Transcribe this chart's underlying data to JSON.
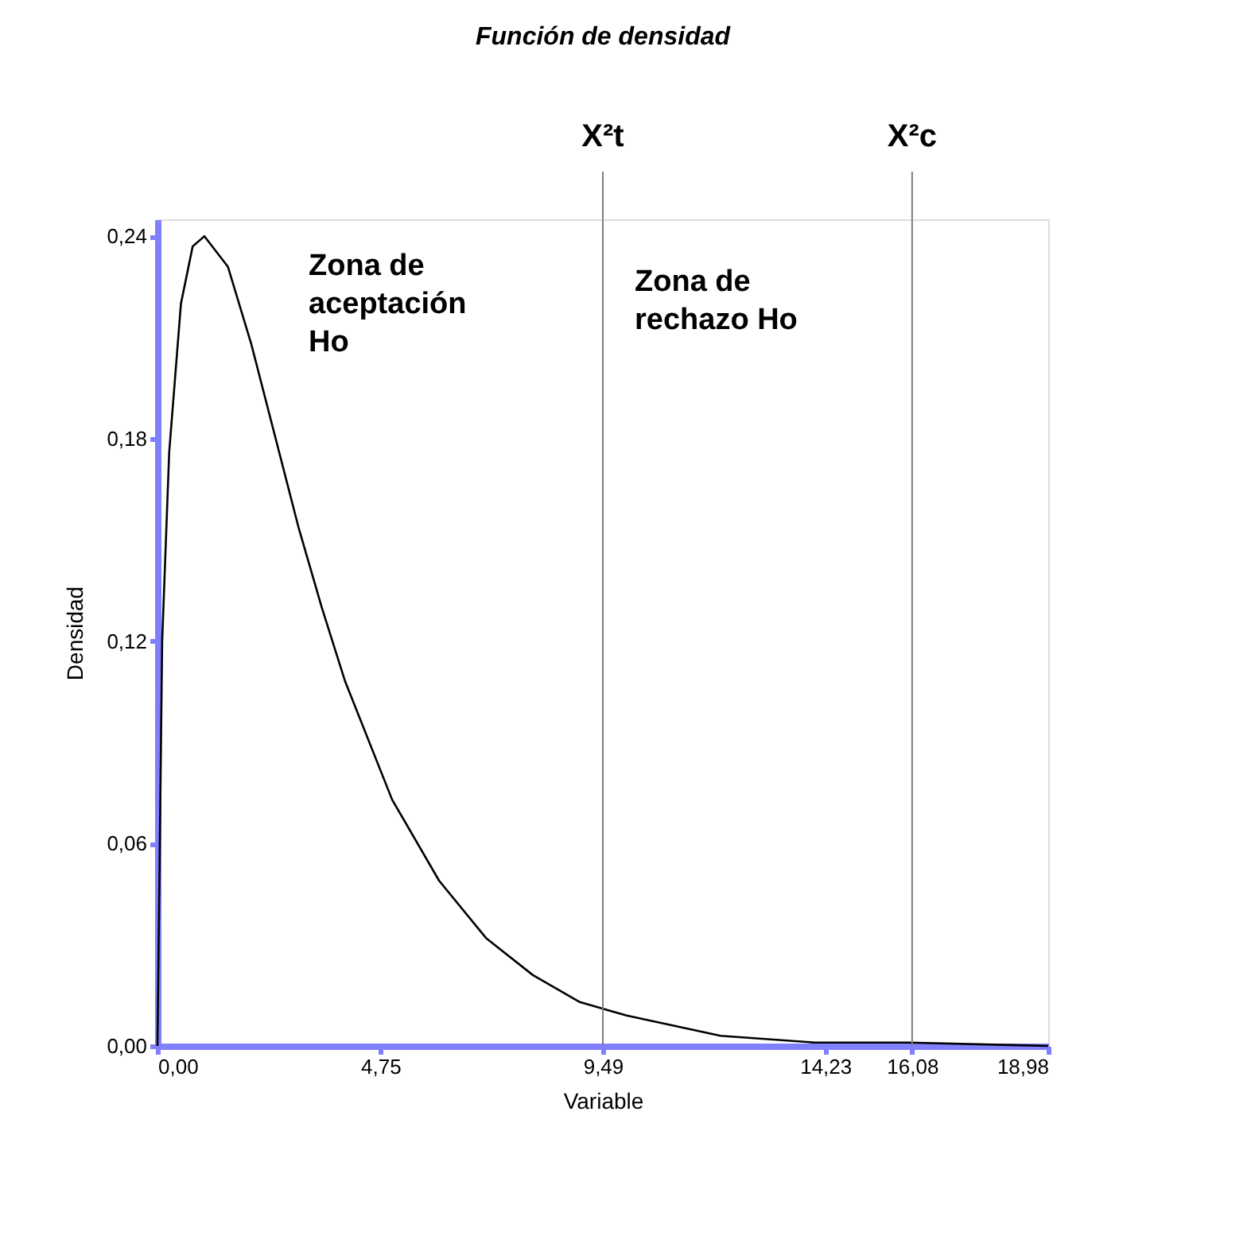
{
  "chart_data": {
    "type": "line",
    "title": "Función de densidad",
    "xlabel": "Variable",
    "ylabel": "Densidad",
    "series": [
      {
        "color": "#000000",
        "x": [
          0,
          0.1,
          0.25,
          0.5,
          0.75,
          1,
          1.5,
          2,
          2.5,
          3,
          3.5,
          4,
          5,
          6,
          7,
          8,
          9,
          10,
          12,
          14,
          16,
          18.98
        ],
        "values": [
          0,
          0.12,
          0.176,
          0.22,
          0.237,
          0.24,
          0.231,
          0.208,
          0.181,
          0.154,
          0.13,
          0.108,
          0.073,
          0.049,
          0.032,
          0.021,
          0.013,
          0.009,
          0.003,
          0.001,
          0.001,
          0
        ]
      }
    ],
    "xlim": [
      0,
      18.98
    ],
    "xticks": [
      {
        "value": 0,
        "label": "0,00"
      },
      {
        "value": 4.75,
        "label": "4,75"
      },
      {
        "value": 9.49,
        "label": "9,49"
      },
      {
        "value": 14.23,
        "label": "14,23"
      },
      {
        "value": 16.08,
        "label": "16,08"
      },
      {
        "value": 18.98,
        "label": "18,98"
      }
    ],
    "ylim": [
      0,
      0.245
    ],
    "yticks": [
      {
        "value": 0,
        "label": "0,00"
      },
      {
        "value": 0.06,
        "label": "0,06"
      },
      {
        "value": 0.12,
        "label": "0,12"
      },
      {
        "value": 0.18,
        "label": "0,18"
      },
      {
        "value": 0.24,
        "label": "0,24"
      }
    ],
    "ref_lines": [
      {
        "axis": "x",
        "value": 9.49,
        "label": "X²t",
        "color": "#808080"
      },
      {
        "axis": "x",
        "value": 16.08,
        "label": "X²c",
        "color": "#808080"
      }
    ],
    "annotations": [
      "Zona de\naceptación\nHo",
      "Zona de\nrechazo Ho"
    ],
    "grid": false,
    "marker": "none",
    "line_style": "solid"
  }
}
